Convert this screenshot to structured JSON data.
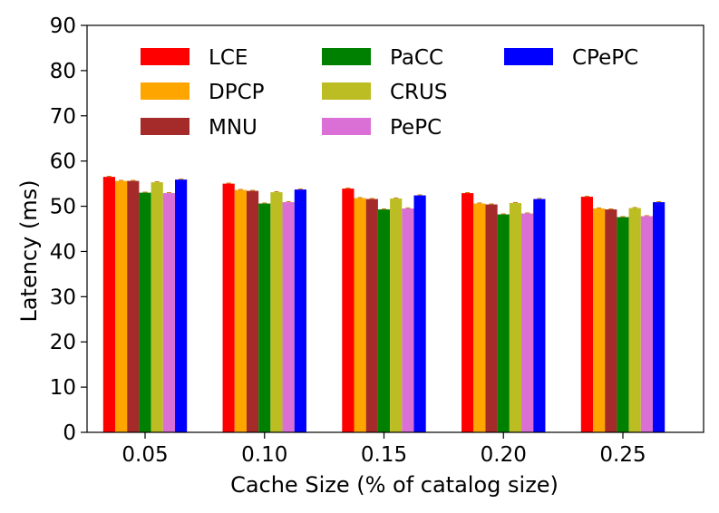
{
  "chart_data": {
    "type": "bar",
    "title": "",
    "xlabel": "Cache Size (% of catalog size)",
    "ylabel": "Latency (ms)",
    "ylim": [
      0,
      90
    ],
    "yticks": [
      0,
      10,
      20,
      30,
      40,
      50,
      60,
      70,
      80,
      90
    ],
    "categories": [
      "0.05",
      "0.10",
      "0.15",
      "0.20",
      "0.25"
    ],
    "legend_position": "top",
    "series": [
      {
        "name": "LCE",
        "color": "#ff0000",
        "values": [
          56.5,
          55.0,
          53.9,
          52.9,
          52.1
        ]
      },
      {
        "name": "DPCP",
        "color": "#ffa500",
        "values": [
          55.6,
          53.6,
          51.8,
          50.6,
          49.5
        ]
      },
      {
        "name": "MNU",
        "color": "#a52a2a",
        "values": [
          55.6,
          53.4,
          51.6,
          50.4,
          49.3
        ]
      },
      {
        "name": "PaCC",
        "color": "#008000",
        "values": [
          53.0,
          50.6,
          49.3,
          48.2,
          47.6
        ]
      },
      {
        "name": "CRUS",
        "color": "#bcbd22",
        "values": [
          55.3,
          53.1,
          51.7,
          50.7,
          49.6
        ]
      },
      {
        "name": "PePC",
        "color": "#da70d6",
        "values": [
          52.9,
          50.9,
          49.5,
          48.4,
          47.8
        ]
      },
      {
        "name": "CPePC",
        "color": "#0000ff",
        "values": [
          55.9,
          53.7,
          52.4,
          51.6,
          50.9
        ]
      }
    ]
  }
}
